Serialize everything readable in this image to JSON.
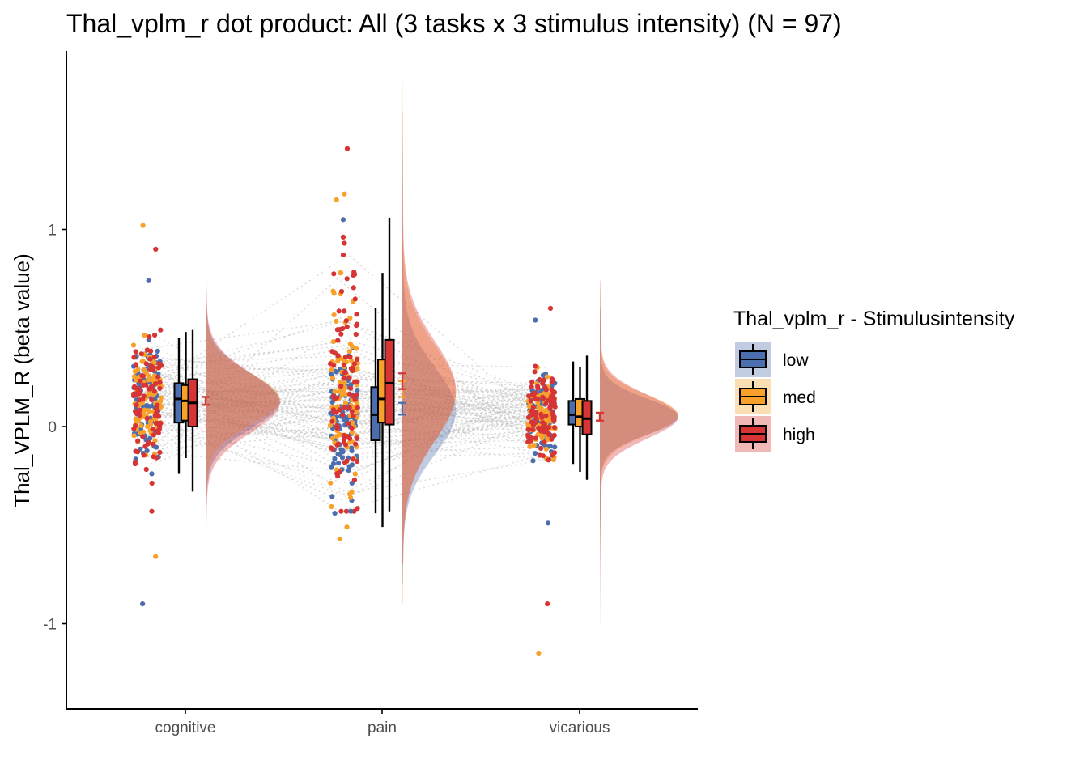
{
  "chart_data": {
    "type": "raincloud",
    "title": "Thal_vplm_r dot product: All (3 tasks x 3 stimulus intensity) (N = 97)",
    "xlabel": "",
    "ylabel": "Thal_VPLM_R  (beta value)",
    "ylim": [
      -1.42,
      1.9
    ],
    "y_ticks": [
      {
        "value": 1,
        "label": "1"
      },
      {
        "value": 0,
        "label": "0"
      },
      {
        "value": -1,
        "label": "-1"
      }
    ],
    "categories": [
      "cognitive",
      "pain",
      "vicarious"
    ],
    "legend": {
      "title": "Thal_vplm_r - Stimulusintensity",
      "position": "right",
      "items": [
        {
          "label": "low",
          "color": "#4C6EAF"
        },
        {
          "label": "med",
          "color": "#F7A12B"
        },
        {
          "label": "high",
          "color": "#D63435"
        }
      ]
    },
    "n_subjects": 97,
    "box_stats": [
      {
        "task": "cognitive",
        "group": "low",
        "whisker_low": -0.24,
        "q1": 0.02,
        "median": 0.14,
        "q3": 0.22,
        "whisker_high": 0.45,
        "mean": 0.13,
        "se": 0.02
      },
      {
        "task": "cognitive",
        "group": "med",
        "whisker_low": -0.16,
        "q1": 0.03,
        "median": 0.13,
        "q3": 0.21,
        "whisker_high": 0.48,
        "mean": 0.13,
        "se": 0.02
      },
      {
        "task": "cognitive",
        "group": "high",
        "whisker_low": -0.33,
        "q1": 0.0,
        "median": 0.12,
        "q3": 0.24,
        "whisker_high": 0.49,
        "mean": 0.13,
        "se": 0.02
      },
      {
        "task": "pain",
        "group": "low",
        "whisker_low": -0.44,
        "q1": -0.07,
        "median": 0.06,
        "q3": 0.2,
        "whisker_high": 0.6,
        "mean": 0.09,
        "se": 0.03
      },
      {
        "task": "pain",
        "group": "med",
        "whisker_low": -0.51,
        "q1": 0.02,
        "median": 0.14,
        "q3": 0.34,
        "whisker_high": 0.78,
        "mean": 0.19,
        "se": 0.04
      },
      {
        "task": "pain",
        "group": "high",
        "whisker_low": -0.43,
        "q1": 0.01,
        "median": 0.22,
        "q3": 0.44,
        "whisker_high": 1.06,
        "mean": 0.23,
        "se": 0.04
      },
      {
        "task": "vicarious",
        "group": "low",
        "whisker_low": -0.19,
        "q1": 0.01,
        "median": 0.06,
        "q3": 0.13,
        "whisker_high": 0.33,
        "mean": 0.05,
        "se": 0.02
      },
      {
        "task": "vicarious",
        "group": "med",
        "whisker_low": -0.23,
        "q1": 0.0,
        "median": 0.05,
        "q3": 0.14,
        "whisker_high": 0.3,
        "mean": 0.05,
        "se": 0.02
      },
      {
        "task": "vicarious",
        "group": "high",
        "whisker_low": -0.27,
        "q1": -0.04,
        "median": 0.04,
        "q3": 0.13,
        "whisker_high": 0.36,
        "mean": 0.05,
        "se": 0.02
      }
    ],
    "density": [
      {
        "task": "cognitive",
        "group": "low",
        "mean": 0.13,
        "sd": 0.14,
        "range": [
          -1.05,
          1.15
        ]
      },
      {
        "task": "cognitive",
        "group": "med",
        "mean": 0.14,
        "sd": 0.13,
        "range": [
          -0.8,
          1.1
        ]
      },
      {
        "task": "cognitive",
        "group": "high",
        "mean": 0.12,
        "sd": 0.15,
        "range": [
          -0.6,
          1.2
        ]
      },
      {
        "task": "pain",
        "group": "low",
        "mean": 0.08,
        "sd": 0.22,
        "range": [
          -0.8,
          1.4
        ]
      },
      {
        "task": "pain",
        "group": "med",
        "mean": 0.17,
        "sd": 0.24,
        "range": [
          -0.9,
          1.75
        ]
      },
      {
        "task": "pain",
        "group": "high",
        "mean": 0.18,
        "sd": 0.25,
        "range": [
          -0.7,
          1.6
        ]
      },
      {
        "task": "vicarious",
        "group": "low",
        "mean": 0.05,
        "sd": 0.09,
        "range": [
          -0.9,
          0.6
        ]
      },
      {
        "task": "vicarious",
        "group": "med",
        "mean": 0.06,
        "sd": 0.1,
        "range": [
          -1.28,
          0.7
        ]
      },
      {
        "task": "vicarious",
        "group": "high",
        "mean": 0.05,
        "sd": 0.11,
        "range": [
          -1.0,
          0.74
        ]
      }
    ],
    "notable_points": [
      {
        "task": "cognitive",
        "group": "med",
        "y": 1.02
      },
      {
        "task": "cognitive",
        "group": "high",
        "y": 0.9
      },
      {
        "task": "cognitive",
        "group": "low",
        "y": 0.74
      },
      {
        "task": "cognitive",
        "group": "med",
        "y": -0.66
      },
      {
        "task": "cognitive",
        "group": "low",
        "y": -0.9
      },
      {
        "task": "cognitive",
        "group": "high",
        "y": -0.43
      },
      {
        "task": "pain",
        "group": "high",
        "y": 1.41
      },
      {
        "task": "pain",
        "group": "med",
        "y": 1.18
      },
      {
        "task": "pain",
        "group": "med",
        "y": 1.15
      },
      {
        "task": "pain",
        "group": "low",
        "y": 1.05
      },
      {
        "task": "pain",
        "group": "high",
        "y": 0.93
      },
      {
        "task": "pain",
        "group": "med",
        "y": -0.51
      },
      {
        "task": "pain",
        "group": "med",
        "y": -0.57
      },
      {
        "task": "pain",
        "group": "low",
        "y": -0.43
      },
      {
        "task": "vicarious",
        "group": "high",
        "y": 0.6
      },
      {
        "task": "vicarious",
        "group": "low",
        "y": 0.54
      },
      {
        "task": "vicarious",
        "group": "low",
        "y": -0.49
      },
      {
        "task": "vicarious",
        "group": "high",
        "y": -0.9
      },
      {
        "task": "vicarious",
        "group": "med",
        "y": -1.15
      }
    ]
  }
}
